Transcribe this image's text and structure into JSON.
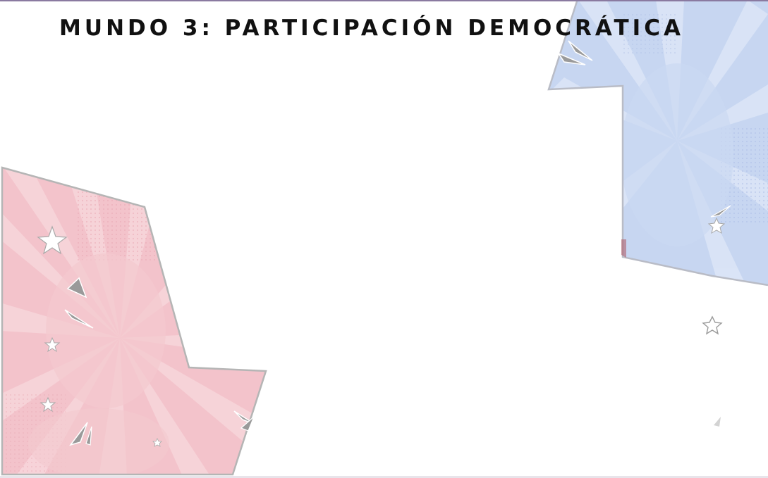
{
  "slide": {
    "title": "MUNDO 3: PARTICIPACIÓN DEMOCRÁTICA"
  },
  "colors": {
    "pink_panel": "#f3c3cb",
    "pink_burst": "#f6d3d8",
    "blue_panel": "#c7d6f1",
    "blue_burst": "#dbe5f7",
    "panel_border": "#b5b5b5",
    "shard": "#9a9a9a",
    "star": "#ffffff",
    "title_text": "#111111"
  },
  "decorations": {
    "left_panel_icons": [
      "star-icon",
      "star-icon",
      "star-icon",
      "star-icon",
      "shard-icon",
      "shard-icon",
      "shard-icon",
      "shard-icon"
    ],
    "right_panel_icons": [
      "star-icon",
      "star-outline-icon",
      "shard-icon",
      "shard-icon"
    ]
  }
}
